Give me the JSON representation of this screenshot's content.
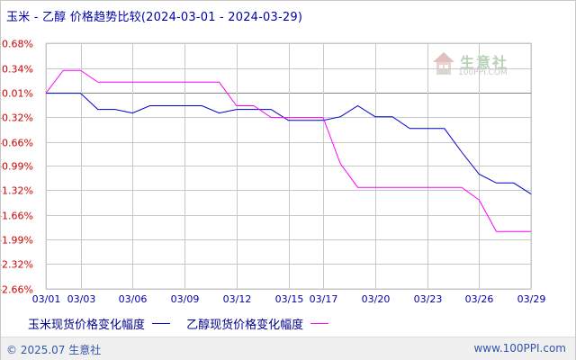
{
  "title": "玉米 - 乙醇 价格趋势比较(2024-03-01 - 2024-03-29)",
  "footer": {
    "copyright": "© 2025.07 生意社",
    "site": "www.100PPI.com"
  },
  "watermark": {
    "name": "生意社",
    "url": "100PPI.COM"
  },
  "colors": {
    "corn": "#0000cc",
    "ethanol": "#ff00ff",
    "zero_line": "#888888",
    "grid": "#c8c8c8",
    "positive_tick": "#cc0000",
    "negative_tick": "#cc0000"
  },
  "chart_data": {
    "type": "line",
    "title": "玉米 - 乙醇 价格趋势比较(2024-03-01 - 2024-03-29)",
    "ylim": [
      -2.66,
      0.68
    ],
    "xlim": [
      "03/01",
      "03/29"
    ],
    "grid": true,
    "legend_position": "bottom",
    "y_ticks": [
      "0.68%",
      "0.34%",
      "0.01%",
      "-0.32%",
      "-0.66%",
      "-0.99%",
      "-1.32%",
      "-1.66%",
      "-1.99%",
      "-2.32%",
      "-2.66%"
    ],
    "x_ticks": [
      "03/01",
      "03/03",
      "03/06",
      "03/09",
      "03/12",
      "03/15",
      "03/17",
      "03/20",
      "03/23",
      "03/26",
      "03/29"
    ],
    "series": [
      {
        "name": "玉米现货价格变化幅度",
        "points": [
          [
            "03/01",
            0.0
          ],
          [
            "03/03",
            0.0
          ],
          [
            "03/04",
            -0.22
          ],
          [
            "03/05",
            -0.22
          ],
          [
            "03/06",
            -0.27
          ],
          [
            "03/07",
            -0.17
          ],
          [
            "03/08",
            -0.17
          ],
          [
            "03/09",
            -0.17
          ],
          [
            "03/10",
            -0.17
          ],
          [
            "03/11",
            -0.27
          ],
          [
            "03/12",
            -0.22
          ],
          [
            "03/13",
            -0.22
          ],
          [
            "03/14",
            -0.22
          ],
          [
            "03/15",
            -0.37
          ],
          [
            "03/16",
            -0.37
          ],
          [
            "03/17",
            -0.37
          ],
          [
            "03/18",
            -0.32
          ],
          [
            "03/19",
            -0.17
          ],
          [
            "03/20",
            -0.32
          ],
          [
            "03/21",
            -0.32
          ],
          [
            "03/22",
            -0.48
          ],
          [
            "03/23",
            -0.48
          ],
          [
            "03/24",
            -0.48
          ],
          [
            "03/25",
            -0.8
          ],
          [
            "03/26",
            -1.1
          ],
          [
            "03/27",
            -1.22
          ],
          [
            "03/28",
            -1.22
          ],
          [
            "03/29",
            -1.37
          ]
        ]
      },
      {
        "name": "乙醇现货价格变化幅度",
        "points": [
          [
            "03/01",
            0.0
          ],
          [
            "03/02",
            0.31
          ],
          [
            "03/03",
            0.31
          ],
          [
            "03/04",
            0.15
          ],
          [
            "03/05",
            0.15
          ],
          [
            "03/06",
            0.15
          ],
          [
            "03/07",
            0.15
          ],
          [
            "03/08",
            0.15
          ],
          [
            "03/09",
            0.15
          ],
          [
            "03/10",
            0.15
          ],
          [
            "03/11",
            0.15
          ],
          [
            "03/12",
            -0.17
          ],
          [
            "03/13",
            -0.17
          ],
          [
            "03/14",
            -0.33
          ],
          [
            "03/15",
            -0.33
          ],
          [
            "03/16",
            -0.33
          ],
          [
            "03/17",
            -0.33
          ],
          [
            "03/18",
            -0.96
          ],
          [
            "03/19",
            -1.28
          ],
          [
            "03/20",
            -1.28
          ],
          [
            "03/21",
            -1.28
          ],
          [
            "03/22",
            -1.28
          ],
          [
            "03/23",
            -1.28
          ],
          [
            "03/24",
            -1.28
          ],
          [
            "03/25",
            -1.28
          ],
          [
            "03/26",
            -1.45
          ],
          [
            "03/27",
            -1.88
          ],
          [
            "03/28",
            -1.88
          ],
          [
            "03/29",
            -1.88
          ]
        ]
      }
    ]
  }
}
